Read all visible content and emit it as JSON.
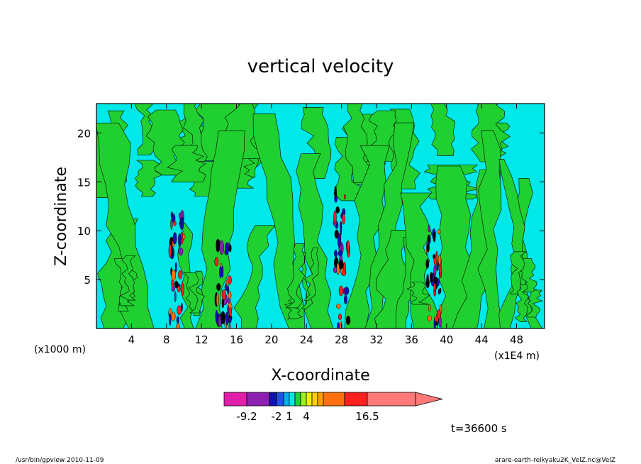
{
  "chart_data": {
    "type": "heatmap",
    "title": "vertical velocity",
    "xlabel": "X-coordinate",
    "ylabel": "Z-coordinate",
    "x_unit_note_left": "(x1000 m)",
    "x_unit_note_right": "(x1E4 m)",
    "xlim": [
      0,
      51.2
    ],
    "ylim": [
      0,
      23
    ],
    "x_ticks": [
      4,
      8,
      12,
      16,
      20,
      24,
      28,
      32,
      36,
      40,
      44,
      48
    ],
    "y_ticks": [
      5,
      10,
      15,
      20
    ],
    "time_label": "t=36600 s",
    "colorbar": {
      "labels": [
        "-9.2",
        "-2",
        "1",
        "4",
        "16.5"
      ],
      "colors": [
        "#e020a8",
        "#8b1fb0",
        "#1010b8",
        "#2050f0",
        "#00b0e8",
        "#00e8e8",
        "#20d030",
        "#a0f020",
        "#f0f000",
        "#ffd000",
        "#ffa000",
        "#ff7010",
        "#ff2020",
        "#ff7a78"
      ]
    },
    "field_colors": {
      "background_updraft_weak": "#00e8e8",
      "weak_positive": "#20d030",
      "strong": "#e04020",
      "downdraft": "#1010b8"
    },
    "convective_cores_x": [
      9.2,
      14.5,
      28,
      38.6
    ],
    "legend_position": "bottom-center"
  },
  "footer": {
    "left": "/usr/bin/gpview   2010-11-09",
    "right": "arare-earth-reikyaku2K_VelZ.nc@VelZ"
  }
}
